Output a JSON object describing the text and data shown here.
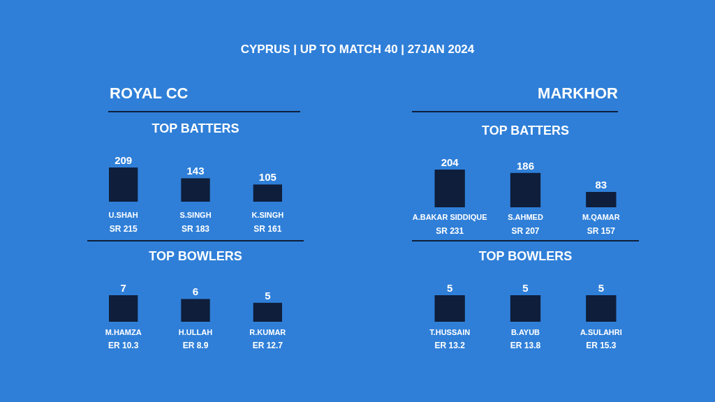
{
  "chart_data": [
    {
      "type": "bar",
      "subtitle": "ROYAL CC",
      "title": "TOP BATTERS",
      "categories": [
        "U.SHAH",
        "S.SINGH",
        "K.SINGH"
      ],
      "values": [
        209,
        143,
        105
      ],
      "color": "#0f1e3a",
      "data_labels": true,
      "annotations": [
        "CYPRUS | UP TO MATCH 40 | 27JAN 2024",
        "SR 215",
        "SR 183",
        "SR 161"
      ]
    },
    {
      "type": "bar",
      "subtitle": "MARKHOR",
      "title": "TOP BATTERS",
      "categories": [
        "A.BAKAR SIDDIQUE",
        "S.AHMED",
        "M.QAMAR"
      ],
      "values": [
        204,
        186,
        83
      ],
      "color": "#0f1e3a",
      "data_labels": true,
      "annotations": [
        "SR 231",
        "SR 207",
        "SR 157"
      ]
    },
    {
      "type": "bar",
      "title": "TOP BOWLERS",
      "categories": [
        "M.HAMZA",
        "H.ULLAH",
        "R.KUMAR"
      ],
      "values": [
        7,
        6,
        5
      ],
      "color": "#0f1e3a",
      "data_labels": true,
      "annotations": [
        "ER 10.3",
        "ER 8.9",
        "ER 12.7"
      ]
    },
    {
      "type": "bar",
      "title": "TOP BOWLERS",
      "categories": [
        "T.HUSSAIN",
        "B.AYUB",
        "A.SULAHRI"
      ],
      "values": [
        5,
        5,
        5
      ],
      "color": "#0f1e3a",
      "data_labels": true,
      "annotations": [
        "ER 13.2",
        "ER 13.8",
        "ER 15.3"
      ]
    }
  ]
}
